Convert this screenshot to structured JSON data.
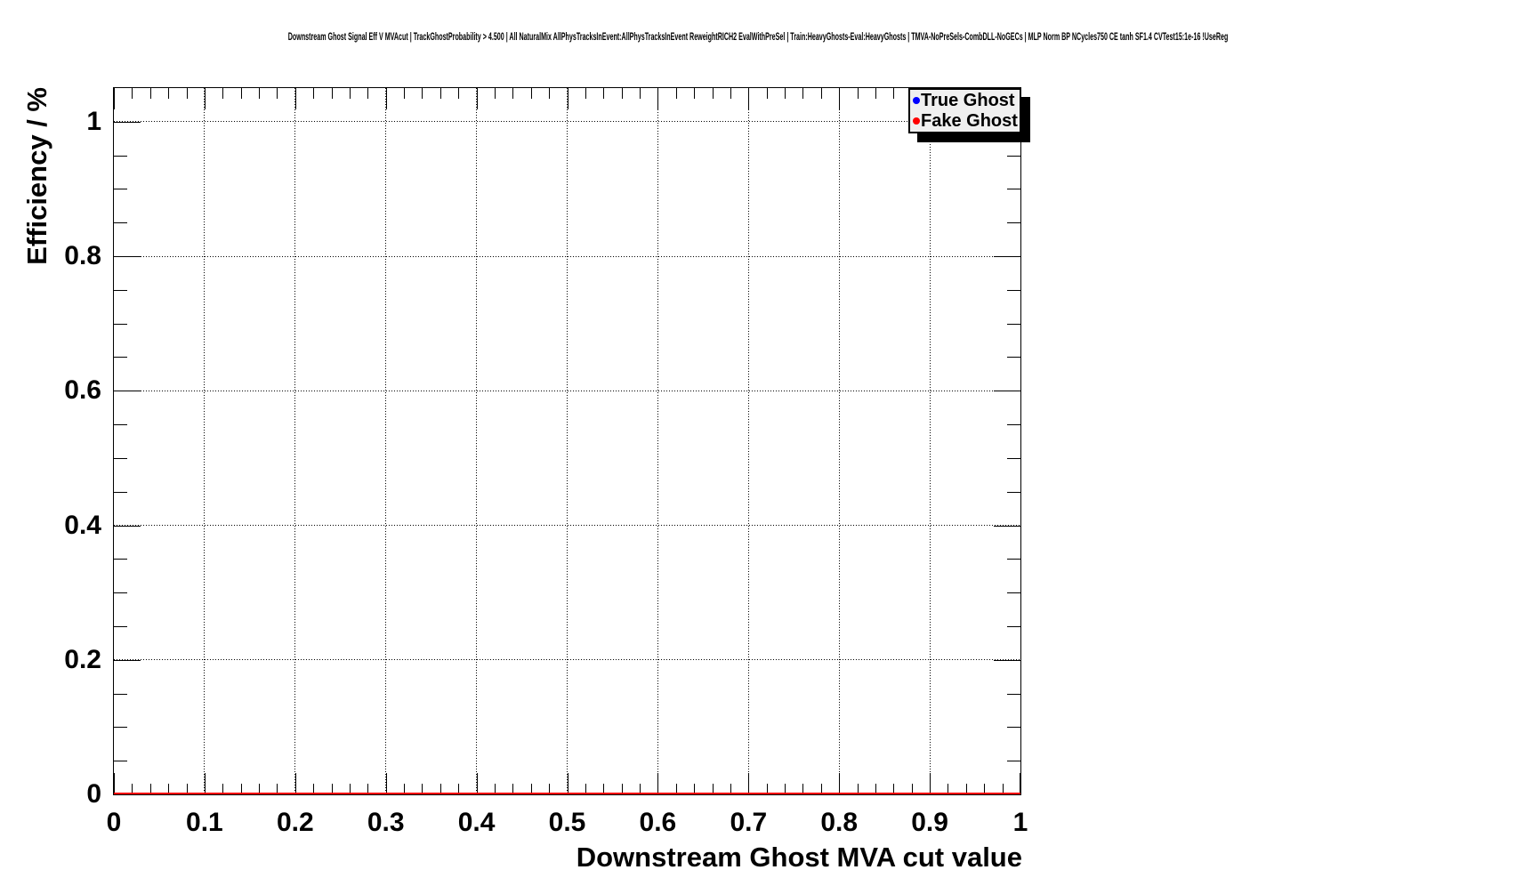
{
  "chart_data": {
    "type": "line",
    "title": "Downstream Ghost Signal Eff V MVAcut | TrackGhostProbability > 4.500 | All NaturalMix AllPhysTracksInEvent:AllPhysTracksInEvent ReweightRICH2 EvalWithPreSel | Train:HeavyGhosts-Eval:HeavyGhosts | TMVA-NoPreSels-CombDLL-NoGECs | MLP Norm BP NCycles750 CE tanh SF1.4 CVTest15:1e-16 !UseReg",
    "xlabel": "Downstream Ghost MVA cut value",
    "ylabel": "Efficiency / %",
    "xlim": [
      0,
      1
    ],
    "ylim": [
      0,
      1.05
    ],
    "x_ticks": {
      "major_values": [
        0,
        0.1,
        0.2,
        0.3,
        0.4,
        0.5,
        0.6,
        0.7,
        0.8,
        0.9,
        1
      ],
      "major_labels": [
        "0",
        "0.1",
        "0.2",
        "0.3",
        "0.4",
        "0.5",
        "0.6",
        "0.7",
        "0.8",
        "0.9",
        "1"
      ],
      "minor_step": 0.02
    },
    "y_ticks": {
      "major_values": [
        0,
        0.2,
        0.4,
        0.6,
        0.8,
        1
      ],
      "major_labels": [
        "0",
        "0.2",
        "0.4",
        "0.6",
        "0.8",
        "1"
      ],
      "minor_step": 0.05
    },
    "grid": {
      "style": "dotted",
      "x_lines": [
        0.1,
        0.2,
        0.3,
        0.4,
        0.5,
        0.6,
        0.7,
        0.8,
        0.9
      ],
      "y_lines": [
        0.2,
        0.4,
        0.6,
        0.8,
        1
      ]
    },
    "legend": {
      "position": "top-right",
      "entries": [
        {
          "label": "True Ghost",
          "marker_color": "#0000ff"
        },
        {
          "label": "Fake Ghost",
          "marker_color": "#ff0000"
        }
      ]
    },
    "series": [
      {
        "name": "True Ghost",
        "color": "#0000ff",
        "x": [
          0,
          1
        ],
        "y": [
          0,
          0
        ],
        "visible": false
      },
      {
        "name": "Fake Ghost",
        "color": "#ff0000",
        "x": [
          0,
          1
        ],
        "y": [
          0,
          0
        ],
        "visible": true
      }
    ]
  },
  "colors": {
    "background": "#ffffff",
    "frame": "#000000",
    "grid": "#000000",
    "legend_bg": "#f0f0f0",
    "legend_shadow": "#000000",
    "true_ghost": "#0000ff",
    "fake_ghost": "#ff0000"
  }
}
